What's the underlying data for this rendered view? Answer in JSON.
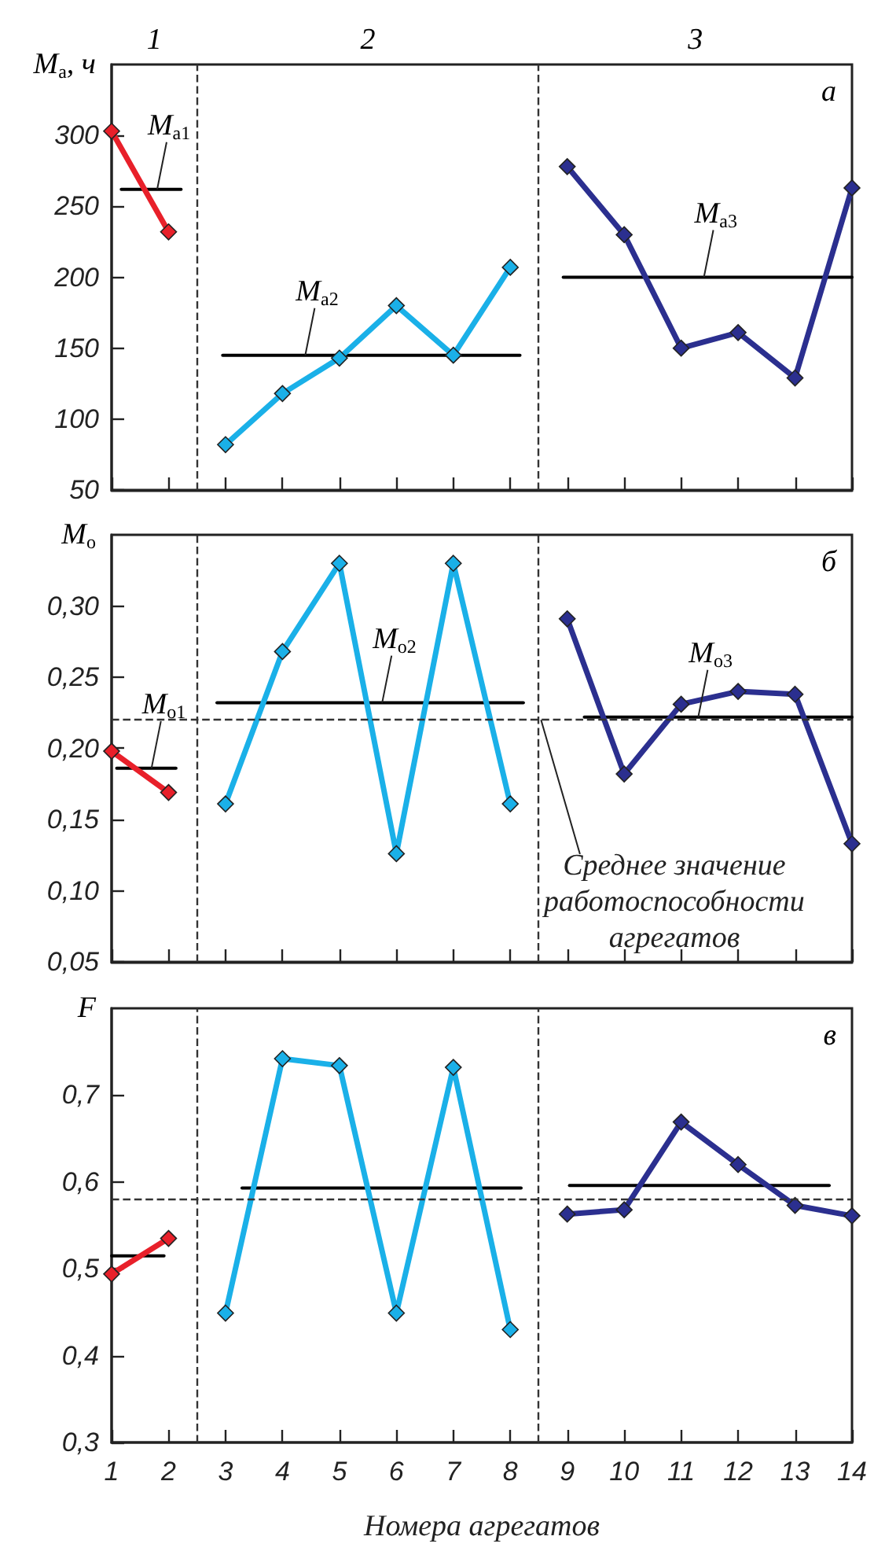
{
  "chart_data": [
    {
      "type": "line",
      "ylabel": "M$_{а}$, ч",
      "xlim": [
        1,
        14
      ],
      "xticks": [
        1,
        2,
        3,
        4,
        5,
        6,
        7,
        8,
        9,
        10,
        11,
        12,
        13,
        14
      ],
      "ylim": [
        50,
        350
      ],
      "yticks": [
        50,
        100,
        150,
        200,
        250,
        300
      ],
      "tick_labels": "y",
      "marker": "diamond",
      "annotations": [
        "а",
        "1",
        "2",
        "3",
        {
          "text": "M$_{а1}$",
          "x": 1.8,
          "y": 262
        },
        {
          "text": "M$_{а2}$",
          "x": 4.4,
          "y": 145
        },
        {
          "text": "M$_{а3}$",
          "x": 11.4,
          "y": 200
        }
      ],
      "ref_lines": [
        {
          "axis": "x",
          "value": 2.5,
          "line_style": "dashed",
          "color": "#333333"
        },
        {
          "axis": "x",
          "value": 8.5,
          "line_style": "dashed",
          "color": "#333333"
        }
      ],
      "series": [
        {
          "color": "#e8202a",
          "x": [
            1,
            2
          ],
          "values": [
            303,
            232
          ]
        },
        {
          "color": "#1ab0e8",
          "x": [
            3,
            4,
            5,
            6,
            7,
            8
          ],
          "values": [
            82,
            118,
            143,
            180,
            145,
            207
          ]
        },
        {
          "color": "#2b2f8f",
          "x": [
            9,
            10,
            11,
            12,
            13,
            14
          ],
          "values": [
            278,
            230,
            150,
            161,
            129,
            263
          ]
        },
        {
          "color": "#000000",
          "marker": "none",
          "x": [
            1.17,
            2.22
          ],
          "values": [
            262,
            262
          ]
        },
        {
          "color": "#000000",
          "marker": "none",
          "x": [
            2.95,
            8.17
          ],
          "values": [
            145,
            145
          ]
        },
        {
          "color": "#000000",
          "marker": "none",
          "x": [
            8.93,
            14
          ],
          "values": [
            200,
            200
          ]
        }
      ]
    },
    {
      "type": "line",
      "ylabel": "M$_{о}$",
      "xlim": [
        1,
        14
      ],
      "xticks": [
        1,
        2,
        3,
        4,
        5,
        6,
        7,
        8,
        9,
        10,
        11,
        12,
        13,
        14
      ],
      "ylim": [
        0.05,
        0.35
      ],
      "yticks": [
        {
          "value": 0.05,
          "label": "0,05"
        },
        {
          "value": 0.1,
          "label": "0,10"
        },
        {
          "value": 0.15,
          "label": "0,15"
        },
        {
          "value": 0.2,
          "label": "0,20"
        },
        {
          "value": 0.25,
          "label": "0,25"
        },
        {
          "value": 0.3,
          "label": "0,30"
        }
      ],
      "tick_labels": "y",
      "marker": "diamond",
      "annotations": [
        "б",
        {
          "text": "M$_{о1}$",
          "x": 1.7,
          "y": 0.186
        },
        {
          "text": "M$_{о2}$",
          "x": 5.75,
          "y": 0.232
        },
        {
          "text": "M$_{о3}$",
          "x": 11.3,
          "y": 0.222
        }
      ],
      "ref_lines": [
        {
          "axis": "x",
          "value": 2.5,
          "line_style": "dashed",
          "color": "#333333"
        },
        {
          "axis": "x",
          "value": 8.5,
          "line_style": "dashed",
          "color": "#333333"
        },
        {
          "axis": "y",
          "value": 0.22,
          "line_style": "dashed",
          "color": "#333333",
          "label": "Среднее значение работоспособности агрегатов"
        }
      ],
      "series": [
        {
          "color": "#e8202a",
          "x": [
            1,
            2
          ],
          "values": [
            0.198,
            0.169
          ]
        },
        {
          "color": "#1ab0e8",
          "x": [
            3,
            4,
            5,
            6,
            7,
            8
          ],
          "values": [
            0.161,
            0.268,
            0.33,
            0.126,
            0.33,
            0.161
          ]
        },
        {
          "color": "#2b2f8f",
          "x": [
            9,
            10,
            11,
            12,
            13,
            14
          ],
          "values": [
            0.291,
            0.182,
            0.231,
            0.24,
            0.238,
            0.133
          ]
        },
        {
          "color": "#000000",
          "marker": "none",
          "x": [
            1.09,
            2.13
          ],
          "values": [
            0.186,
            0.186
          ]
        },
        {
          "color": "#000000",
          "marker": "none",
          "x": [
            2.85,
            8.23
          ],
          "values": [
            0.232,
            0.232
          ]
        },
        {
          "color": "#000000",
          "marker": "none",
          "x": [
            9.3,
            14
          ],
          "values": [
            0.222,
            0.222
          ]
        }
      ]
    },
    {
      "type": "line",
      "ylabel": "F",
      "xlabel": "Номера агрегатов",
      "xlim": [
        1,
        14
      ],
      "xticks": [
        1,
        2,
        3,
        4,
        5,
        6,
        7,
        8,
        9,
        10,
        11,
        12,
        13,
        14
      ],
      "ylim": [
        0.3,
        0.8
      ],
      "yticks": [
        {
          "value": 0.3,
          "label": "0,3"
        },
        {
          "value": 0.4,
          "label": "0,4"
        },
        {
          "value": 0.5,
          "label": "0,5"
        },
        {
          "value": 0.6,
          "label": "0,6"
        },
        {
          "value": 0.7,
          "label": "0,7"
        }
      ],
      "marker": "diamond",
      "annotations": [
        "в"
      ],
      "ref_lines": [
        {
          "axis": "x",
          "value": 2.5,
          "line_style": "dashed",
          "color": "#333333"
        },
        {
          "axis": "x",
          "value": 8.5,
          "line_style": "dashed",
          "color": "#333333"
        },
        {
          "axis": "y",
          "value": 0.579,
          "line_style": "dashed",
          "color": "#333333"
        }
      ],
      "series": [
        {
          "color": "#e8202a",
          "x": [
            1,
            2
          ],
          "values": [
            0.494,
            0.535
          ]
        },
        {
          "color": "#1ab0e8",
          "x": [
            3,
            4,
            5,
            6,
            7,
            8
          ],
          "values": [
            0.449,
            0.742,
            0.734,
            0.449,
            0.732,
            0.43
          ]
        },
        {
          "color": "#2b2f8f",
          "x": [
            9,
            10,
            11,
            12,
            13,
            14
          ],
          "values": [
            0.563,
            0.568,
            0.669,
            0.62,
            0.573,
            0.561
          ]
        },
        {
          "color": "#000000",
          "marker": "none",
          "x": [
            1,
            1.92
          ],
          "values": [
            0.515,
            0.515
          ]
        },
        {
          "color": "#000000",
          "marker": "none",
          "x": [
            3.29,
            8.19
          ],
          "values": [
            0.593,
            0.593
          ]
        },
        {
          "color": "#000000",
          "marker": "none",
          "x": [
            9.04,
            13.6
          ],
          "values": [
            0.596,
            0.596
          ]
        }
      ]
    }
  ]
}
